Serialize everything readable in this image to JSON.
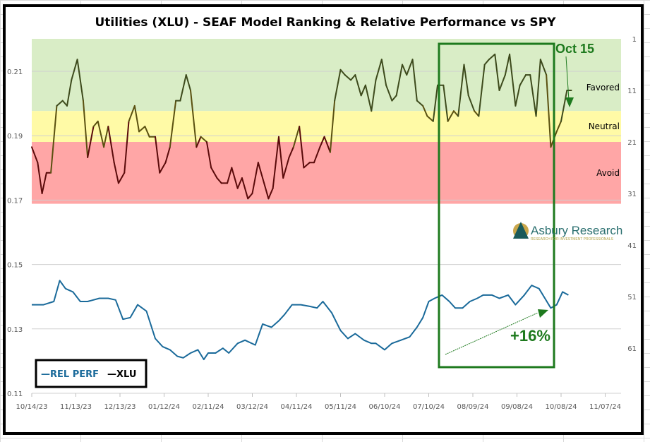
{
  "chart_data": {
    "type": "line",
    "title": "Utilities (XLU) - SEAF Model Ranking & Relative Performance vs SPY",
    "x_tick_labels": [
      "10/14/23",
      "11/13/23",
      "12/13/23",
      "01/12/24",
      "02/11/24",
      "03/12/24",
      "04/11/24",
      "05/11/24",
      "06/10/24",
      "07/10/24",
      "08/09/24",
      "09/08/24",
      "10/08/24",
      "11/07/24"
    ],
    "left_axis": {
      "label": "",
      "ticks": [
        "0.21",
        "0.19",
        "0.17",
        "0.15",
        "0.13",
        "0.11"
      ],
      "range": [
        0.11,
        0.22
      ]
    },
    "right_axis": {
      "label": "",
      "ticks": [
        "1",
        "11",
        "21",
        "31",
        "41",
        "51",
        "61"
      ],
      "range": [
        1,
        70
      ],
      "inverted": true
    },
    "zones": [
      {
        "name": "Favored",
        "label": "Favored",
        "rank_from": 1,
        "rank_to": 15,
        "color": "#d9edc6"
      },
      {
        "name": "Neutral",
        "label": "Neutral",
        "rank_from": 15,
        "rank_to": 21,
        "color": "#fffaa6"
      },
      {
        "name": "Avoid",
        "label": "Avoid",
        "rank_from": 21,
        "rank_to": 33,
        "color": "#ffa6a6"
      }
    ],
    "legend": {
      "position": "bottom-left",
      "entries": [
        {
          "name": "REL PERF",
          "color": "#1a6a9a"
        },
        {
          "name": "XLU",
          "color": "#000000"
        }
      ]
    },
    "series": [
      {
        "name": "XLU",
        "axis": "right",
        "unit": "rank",
        "x_days": [
          0,
          4,
          7,
          10,
          13,
          17,
          21,
          24,
          27,
          31,
          35,
          38,
          42,
          45,
          49,
          52,
          56,
          59,
          63,
          66,
          70,
          73,
          77,
          80,
          84,
          87,
          91,
          94,
          98,
          101,
          105,
          108,
          112,
          115,
          119,
          122,
          126,
          129,
          133,
          136,
          140,
          143,
          147,
          150,
          154,
          157,
          161,
          164,
          168,
          171,
          175,
          178,
          182,
          185,
          189,
          192,
          196,
          199,
          203,
          206,
          210,
          213,
          217,
          220,
          224,
          227,
          231,
          234,
          238,
          241,
          245,
          248,
          252,
          255,
          259,
          262,
          266,
          269,
          273,
          276,
          280,
          283,
          287,
          290,
          294,
          297,
          301,
          304,
          308,
          311,
          315,
          318,
          322,
          325,
          329,
          332,
          336,
          339,
          343,
          346,
          350,
          353,
          357,
          360,
          364,
          367
        ],
        "values": [
          22,
          25,
          31,
          27,
          27,
          14,
          13,
          14,
          9,
          5,
          13,
          24,
          18,
          17,
          22,
          18,
          25,
          29,
          27,
          17,
          14,
          19,
          18,
          20,
          20,
          27,
          25,
          22,
          13,
          13,
          8,
          11,
          22,
          20,
          21,
          26,
          28,
          29,
          29,
          26,
          30,
          28,
          32,
          31,
          25,
          28,
          32,
          30,
          20,
          28,
          24,
          22,
          18,
          26,
          25,
          25,
          22,
          20,
          23,
          13,
          7,
          8,
          9,
          8,
          12,
          10,
          15,
          9,
          5,
          10,
          13,
          12,
          6,
          8,
          5,
          13,
          14,
          16,
          17,
          10,
          10,
          17,
          15,
          16,
          6,
          12,
          15,
          16,
          6,
          5,
          4,
          11,
          8,
          4,
          14,
          10,
          8,
          8,
          16,
          5,
          8,
          22,
          19,
          17,
          11,
          11
        ]
      },
      {
        "name": "REL PERF",
        "axis": "left",
        "unit": "ratio",
        "x_days": [
          0,
          8,
          15,
          19,
          23,
          28,
          33,
          38,
          46,
          52,
          57,
          62,
          67,
          72,
          78,
          84,
          89,
          94,
          99,
          103,
          108,
          113,
          117,
          120,
          125,
          130,
          134,
          140,
          145,
          152,
          157,
          163,
          168,
          172,
          177,
          183,
          189,
          194,
          198,
          204,
          210,
          215,
          220,
          226,
          231,
          234,
          240,
          245,
          251,
          257,
          262,
          266,
          270,
          274,
          279,
          284,
          288,
          293,
          298,
          303,
          307,
          313,
          318,
          324,
          329,
          335,
          340,
          345,
          349,
          353,
          357,
          361,
          365
        ],
        "values": [
          0.1375,
          0.1375,
          0.1385,
          0.145,
          0.1425,
          0.1415,
          0.1385,
          0.1385,
          0.1395,
          0.1395,
          0.139,
          0.133,
          0.1335,
          0.1375,
          0.1355,
          0.127,
          0.1245,
          0.1235,
          0.1215,
          0.121,
          0.1225,
          0.1235,
          0.1205,
          0.1225,
          0.1225,
          0.124,
          0.1225,
          0.1255,
          0.1265,
          0.125,
          0.1315,
          0.1305,
          0.1325,
          0.1345,
          0.1375,
          0.1375,
          0.137,
          0.1365,
          0.1385,
          0.135,
          0.1295,
          0.127,
          0.1285,
          0.1265,
          0.1255,
          0.1255,
          0.1235,
          0.1255,
          0.1265,
          0.1275,
          0.1305,
          0.1335,
          0.1385,
          0.1395,
          0.1405,
          0.1385,
          0.1365,
          0.1365,
          0.1385,
          0.1395,
          0.1405,
          0.1405,
          0.1395,
          0.1405,
          0.1375,
          0.1405,
          0.1435,
          0.1425,
          0.1395,
          0.1365,
          0.1375,
          0.1415,
          0.1405
        ]
      }
    ],
    "annotations": [
      {
        "text": "Oct 15",
        "type": "label-with-arrow"
      },
      {
        "text": "+16%",
        "type": "label-with-arrow"
      }
    ],
    "highlight_box": {
      "from": "07/19/24",
      "to": "10/11/24"
    },
    "watermark": {
      "brand": "Asbury Research",
      "tagline": "RESEARCH FOR INVESTMENT PROFESSIONALS"
    }
  }
}
